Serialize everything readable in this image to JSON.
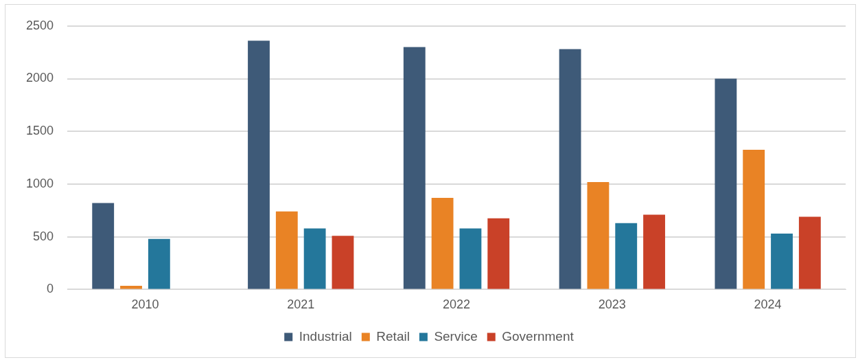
{
  "chart_data": {
    "type": "bar",
    "categories": [
      "2010",
      "2021",
      "2022",
      "2023",
      "2024"
    ],
    "series": [
      {
        "name": "Industrial",
        "color": "#3e5a78",
        "values": [
          820,
          2360,
          2300,
          2280,
          2000
        ]
      },
      {
        "name": "Retail",
        "color": "#e98325",
        "values": [
          35,
          740,
          870,
          1020,
          1325
        ]
      },
      {
        "name": "Service",
        "color": "#24779b",
        "values": [
          480,
          580,
          580,
          630,
          530
        ]
      },
      {
        "name": "Government",
        "color": "#c94128",
        "values": [
          null,
          510,
          675,
          710,
          690
        ]
      }
    ],
    "ylim": [
      0,
      2500
    ],
    "yticks": [
      0,
      500,
      1000,
      1500,
      2000,
      2500
    ],
    "grid": "y",
    "legend": "bottom"
  }
}
